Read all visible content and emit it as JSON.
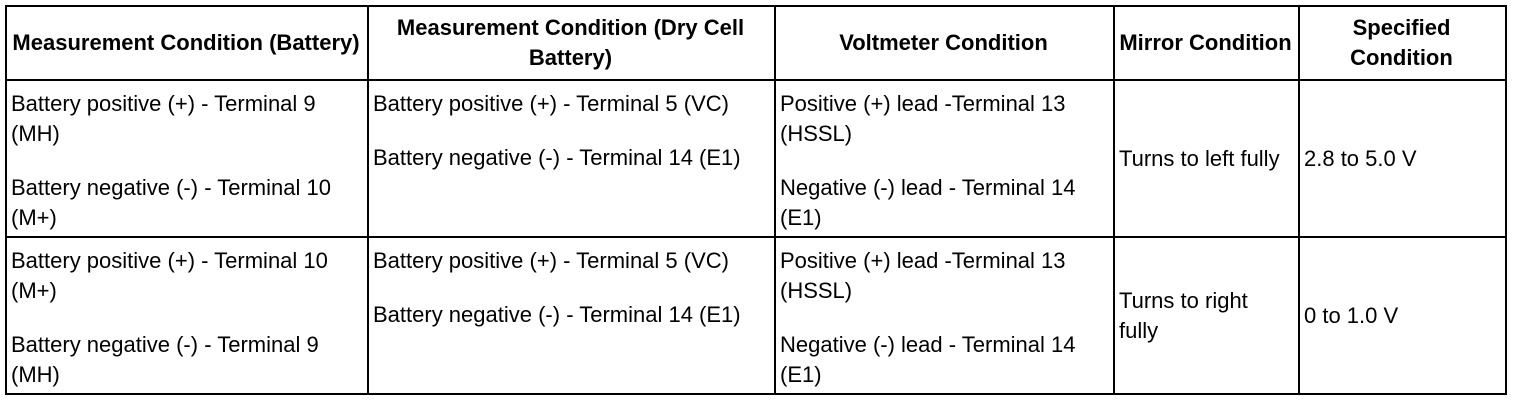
{
  "headers": [
    "Measurement Condition (Battery)",
    "Measurement Condition (Dry Cell Battery)",
    "Voltmeter Condition",
    "Mirror Condition",
    "Specified Condition"
  ],
  "rows": [
    {
      "battery": [
        "Battery positive (+) - Terminal 9 (MH)",
        "Battery negative (-) - Terminal 10 (M+)"
      ],
      "dry_cell": [
        "Battery positive (+) - Terminal 5 (VC)",
        "Battery negative (-) - Terminal 14 (E1)"
      ],
      "voltmeter": [
        "Positive (+) lead -Terminal 13 (HSSL)",
        "Negative (-) lead - Terminal 14 (E1)"
      ],
      "mirror": "Turns to left fully",
      "specified": "2.8 to 5.0 V"
    },
    {
      "battery": [
        "Battery positive (+) - Terminal 10 (M+)",
        "Battery negative (-) - Terminal 9 (MH)"
      ],
      "dry_cell": [
        "Battery positive (+) - Terminal 5 (VC)",
        "Battery negative (-) - Terminal 14 (E1)"
      ],
      "voltmeter": [
        "Positive (+) lead -Terminal 13 (HSSL)",
        "Negative (-) lead - Terminal 14 (E1)"
      ],
      "mirror": "Turns to right fully",
      "specified": "0 to 1.0 V"
    }
  ]
}
